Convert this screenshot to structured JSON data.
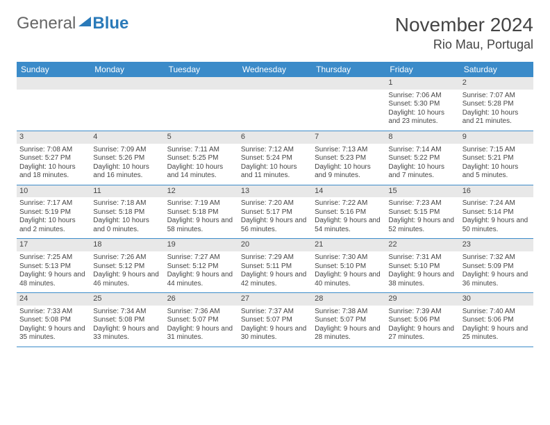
{
  "brand": {
    "part1": "General",
    "part2": "Blue"
  },
  "title": "November 2024",
  "location": "Rio Mau, Portugal",
  "colors": {
    "header_bg": "#3b8bc9",
    "header_text": "#ffffff",
    "daynum_bg": "#e8e8e8",
    "row_divider": "#3b8bc9",
    "brand_blue": "#2a7ab9",
    "text": "#444444",
    "background": "#ffffff"
  },
  "typography": {
    "title_fontsize": 28,
    "location_fontsize": 18,
    "dayheader_fontsize": 12,
    "cell_fontsize": 10
  },
  "day_names": [
    "Sunday",
    "Monday",
    "Tuesday",
    "Wednesday",
    "Thursday",
    "Friday",
    "Saturday"
  ],
  "weeks": [
    [
      null,
      null,
      null,
      null,
      null,
      {
        "n": "1",
        "sr": "Sunrise: 7:06 AM",
        "ss": "Sunset: 5:30 PM",
        "dl": "Daylight: 10 hours and 23 minutes."
      },
      {
        "n": "2",
        "sr": "Sunrise: 7:07 AM",
        "ss": "Sunset: 5:28 PM",
        "dl": "Daylight: 10 hours and 21 minutes."
      }
    ],
    [
      {
        "n": "3",
        "sr": "Sunrise: 7:08 AM",
        "ss": "Sunset: 5:27 PM",
        "dl": "Daylight: 10 hours and 18 minutes."
      },
      {
        "n": "4",
        "sr": "Sunrise: 7:09 AM",
        "ss": "Sunset: 5:26 PM",
        "dl": "Daylight: 10 hours and 16 minutes."
      },
      {
        "n": "5",
        "sr": "Sunrise: 7:11 AM",
        "ss": "Sunset: 5:25 PM",
        "dl": "Daylight: 10 hours and 14 minutes."
      },
      {
        "n": "6",
        "sr": "Sunrise: 7:12 AM",
        "ss": "Sunset: 5:24 PM",
        "dl": "Daylight: 10 hours and 11 minutes."
      },
      {
        "n": "7",
        "sr": "Sunrise: 7:13 AM",
        "ss": "Sunset: 5:23 PM",
        "dl": "Daylight: 10 hours and 9 minutes."
      },
      {
        "n": "8",
        "sr": "Sunrise: 7:14 AM",
        "ss": "Sunset: 5:22 PM",
        "dl": "Daylight: 10 hours and 7 minutes."
      },
      {
        "n": "9",
        "sr": "Sunrise: 7:15 AM",
        "ss": "Sunset: 5:21 PM",
        "dl": "Daylight: 10 hours and 5 minutes."
      }
    ],
    [
      {
        "n": "10",
        "sr": "Sunrise: 7:17 AM",
        "ss": "Sunset: 5:19 PM",
        "dl": "Daylight: 10 hours and 2 minutes."
      },
      {
        "n": "11",
        "sr": "Sunrise: 7:18 AM",
        "ss": "Sunset: 5:18 PM",
        "dl": "Daylight: 10 hours and 0 minutes."
      },
      {
        "n": "12",
        "sr": "Sunrise: 7:19 AM",
        "ss": "Sunset: 5:18 PM",
        "dl": "Daylight: 9 hours and 58 minutes."
      },
      {
        "n": "13",
        "sr": "Sunrise: 7:20 AM",
        "ss": "Sunset: 5:17 PM",
        "dl": "Daylight: 9 hours and 56 minutes."
      },
      {
        "n": "14",
        "sr": "Sunrise: 7:22 AM",
        "ss": "Sunset: 5:16 PM",
        "dl": "Daylight: 9 hours and 54 minutes."
      },
      {
        "n": "15",
        "sr": "Sunrise: 7:23 AM",
        "ss": "Sunset: 5:15 PM",
        "dl": "Daylight: 9 hours and 52 minutes."
      },
      {
        "n": "16",
        "sr": "Sunrise: 7:24 AM",
        "ss": "Sunset: 5:14 PM",
        "dl": "Daylight: 9 hours and 50 minutes."
      }
    ],
    [
      {
        "n": "17",
        "sr": "Sunrise: 7:25 AM",
        "ss": "Sunset: 5:13 PM",
        "dl": "Daylight: 9 hours and 48 minutes."
      },
      {
        "n": "18",
        "sr": "Sunrise: 7:26 AM",
        "ss": "Sunset: 5:12 PM",
        "dl": "Daylight: 9 hours and 46 minutes."
      },
      {
        "n": "19",
        "sr": "Sunrise: 7:27 AM",
        "ss": "Sunset: 5:12 PM",
        "dl": "Daylight: 9 hours and 44 minutes."
      },
      {
        "n": "20",
        "sr": "Sunrise: 7:29 AM",
        "ss": "Sunset: 5:11 PM",
        "dl": "Daylight: 9 hours and 42 minutes."
      },
      {
        "n": "21",
        "sr": "Sunrise: 7:30 AM",
        "ss": "Sunset: 5:10 PM",
        "dl": "Daylight: 9 hours and 40 minutes."
      },
      {
        "n": "22",
        "sr": "Sunrise: 7:31 AM",
        "ss": "Sunset: 5:10 PM",
        "dl": "Daylight: 9 hours and 38 minutes."
      },
      {
        "n": "23",
        "sr": "Sunrise: 7:32 AM",
        "ss": "Sunset: 5:09 PM",
        "dl": "Daylight: 9 hours and 36 minutes."
      }
    ],
    [
      {
        "n": "24",
        "sr": "Sunrise: 7:33 AM",
        "ss": "Sunset: 5:08 PM",
        "dl": "Daylight: 9 hours and 35 minutes."
      },
      {
        "n": "25",
        "sr": "Sunrise: 7:34 AM",
        "ss": "Sunset: 5:08 PM",
        "dl": "Daylight: 9 hours and 33 minutes."
      },
      {
        "n": "26",
        "sr": "Sunrise: 7:36 AM",
        "ss": "Sunset: 5:07 PM",
        "dl": "Daylight: 9 hours and 31 minutes."
      },
      {
        "n": "27",
        "sr": "Sunrise: 7:37 AM",
        "ss": "Sunset: 5:07 PM",
        "dl": "Daylight: 9 hours and 30 minutes."
      },
      {
        "n": "28",
        "sr": "Sunrise: 7:38 AM",
        "ss": "Sunset: 5:07 PM",
        "dl": "Daylight: 9 hours and 28 minutes."
      },
      {
        "n": "29",
        "sr": "Sunrise: 7:39 AM",
        "ss": "Sunset: 5:06 PM",
        "dl": "Daylight: 9 hours and 27 minutes."
      },
      {
        "n": "30",
        "sr": "Sunrise: 7:40 AM",
        "ss": "Sunset: 5:06 PM",
        "dl": "Daylight: 9 hours and 25 minutes."
      }
    ]
  ]
}
